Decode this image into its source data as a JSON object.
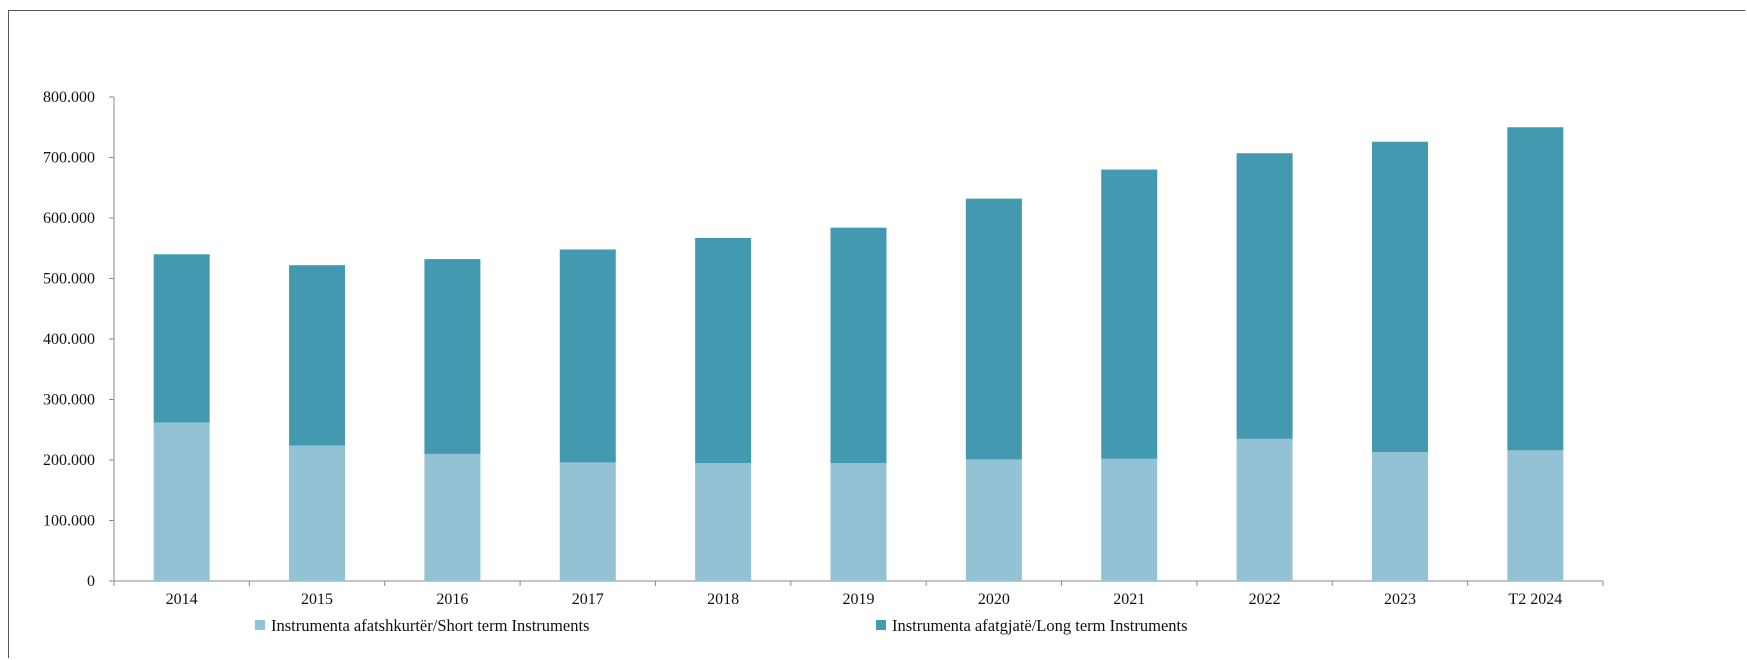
{
  "chart_data": {
    "type": "bar",
    "stacked": true,
    "title": "",
    "xlabel": "",
    "ylabel": "",
    "ylim": [
      0,
      800000
    ],
    "yticks": [
      0,
      100000,
      200000,
      300000,
      400000,
      500000,
      600000,
      700000,
      800000
    ],
    "ytick_labels": [
      "0",
      "100.000",
      "200.000",
      "300.000",
      "400.000",
      "500.000",
      "600.000",
      "700.000",
      "800.000"
    ],
    "categories": [
      "2014",
      "2015",
      "2016",
      "2017",
      "2018",
      "2019",
      "2020",
      "2021",
      "2022",
      "2023",
      "T2 2024"
    ],
    "series": [
      {
        "name": "Instrumenta afatshkurtër/Short term Instruments",
        "color": "#93c2d4",
        "values": [
          262000,
          224000,
          210000,
          196000,
          195000,
          195000,
          201000,
          202000,
          235000,
          213000,
          216000
        ]
      },
      {
        "name": "Instrumenta afatgjatë/Long term Instruments",
        "color": "#4399b0",
        "values": [
          278000,
          298000,
          322000,
          352000,
          372000,
          389000,
          431000,
          478000,
          472000,
          513000,
          534000
        ]
      }
    ],
    "grid": false,
    "legend_position": "bottom"
  }
}
